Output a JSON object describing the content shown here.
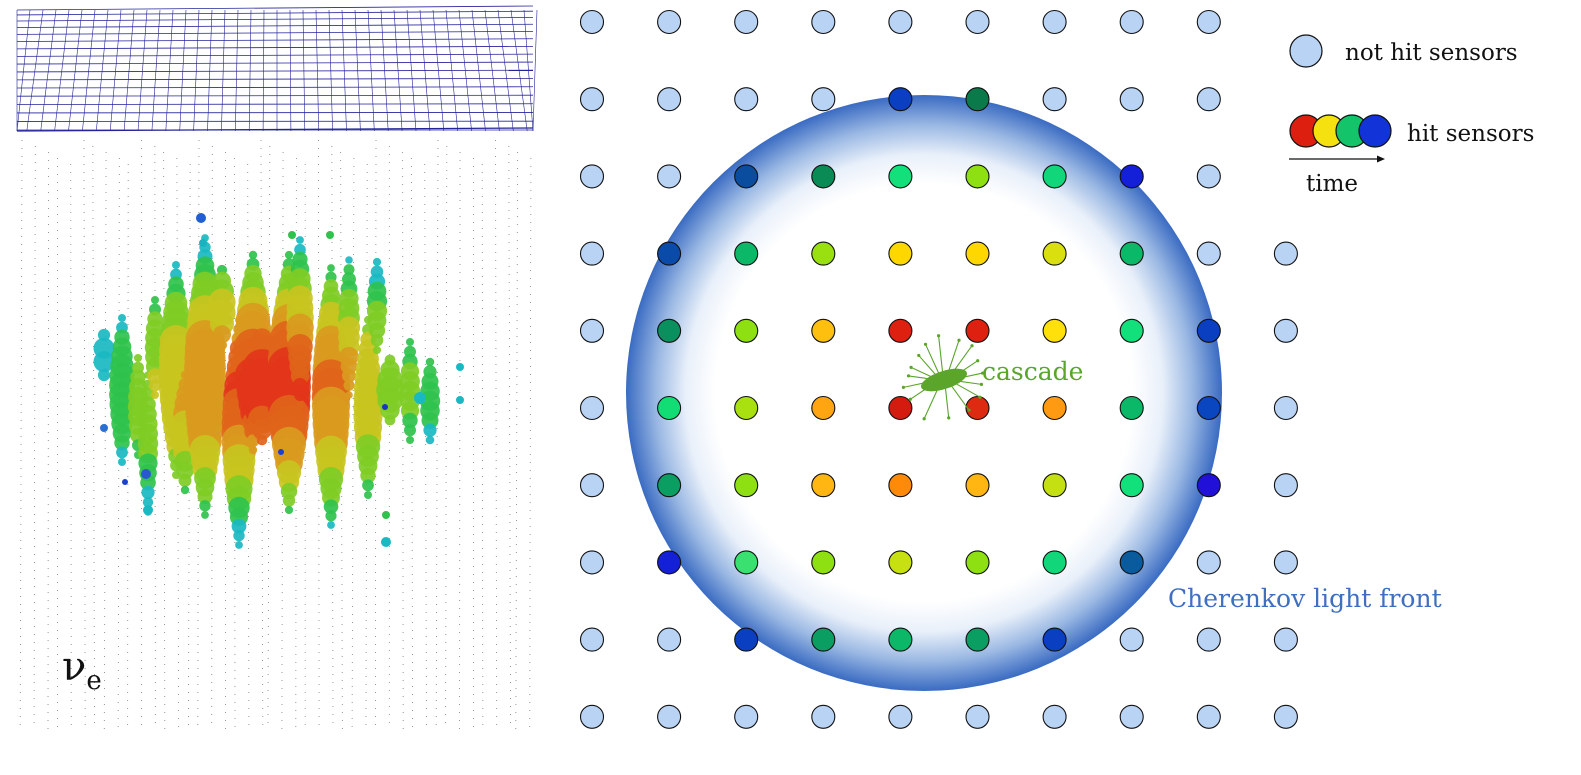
{
  "left_panel": {
    "particle_symbol": "ν",
    "particle_subscript": "e"
  },
  "legend": {
    "not_hit_label": "not hit sensors",
    "hit_label": "hit sensors",
    "time_label": "time",
    "hit_colors": [
      "#dd1f10",
      "#f5e010",
      "#13c46a",
      "#1233d8"
    ]
  },
  "diagram": {
    "cascade_label": "cascade",
    "front_label": "Cherenkov light front",
    "cascade_color": "#5aa52a",
    "front_color": "#3e6fc0",
    "not_hit_color": "#b9d3f5",
    "sensor_grid": [
      [
        "n",
        "n",
        "n",
        "n",
        "n",
        "n",
        "n",
        "n",
        "n"
      ],
      [
        "n",
        "n",
        "n",
        "n",
        "#0a3fc2",
        "#0a7a4a",
        "n",
        "n",
        "n"
      ],
      [
        "n",
        "n",
        "#0a4d9e",
        "#0a8a55",
        "#12e07a",
        "#8fe012",
        "#12d77a",
        "#1420d8",
        "n"
      ],
      [
        "n",
        "#0a4aa8",
        "#0ab868",
        "#9ae010",
        "#ffd700",
        "#ffd700",
        "#dae010",
        "#0ab868",
        "n",
        "n"
      ],
      [
        "n",
        "#0a8f5e",
        "#8fe012",
        "#ffbf0f",
        "#dd2010",
        "#dd2010",
        "#ffe00a",
        "#12e07a",
        "#0a3fc2",
        "n"
      ],
      [
        "n",
        "#12dd75",
        "#a8e010",
        "#ffa512",
        "#d51a10",
        "#dd2a10",
        "#ff9a12",
        "#0ab868",
        "#0a46c0",
        "n"
      ],
      [
        "n",
        "#0a9e62",
        "#8fe012",
        "#ffb512",
        "#ff8a0a",
        "#ffb512",
        "#c4e012",
        "#12e07a",
        "#2010d8",
        "n"
      ],
      [
        "n",
        "#1420d8",
        "#3ae070",
        "#8fe012",
        "#c6e012",
        "#8fe012",
        "#12d77a",
        "#0a5a9e",
        "n",
        "n"
      ],
      [
        "n",
        "n",
        "#0a3fc2",
        "#0a9e62",
        "#0ab868",
        "#0a9e62",
        "#0a3fc2",
        "n",
        "n",
        "n"
      ],
      [
        "n",
        "n",
        "n",
        "n",
        "n",
        "n",
        "n",
        "n",
        "n",
        "n"
      ]
    ]
  }
}
